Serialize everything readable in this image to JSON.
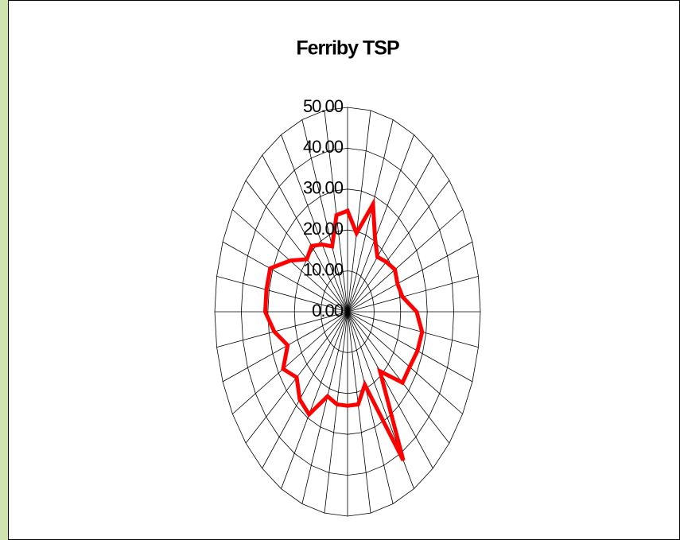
{
  "chart_data": {
    "type": "radar",
    "title": "Ferriby TSP",
    "values": [
      24.7,
      19.5,
      28,
      20.7,
      17.5,
      19,
      20.6,
      20,
      21,
      26,
      28.5,
      28,
      27,
      27,
      19,
      42,
      19,
      23,
      23,
      23,
      22,
      29,
      28,
      25,
      28,
      24,
      28,
      31,
      31,
      31,
      25,
      20,
      21,
      19,
      17,
      24
    ],
    "color": "#ff0000",
    "ylim": [
      0,
      50
    ],
    "yticks": [
      {
        "value": 0,
        "label": "0.00"
      },
      {
        "value": 10,
        "label": "10.00"
      },
      {
        "value": 20,
        "label": "20.00"
      },
      {
        "value": 30,
        "label": "30.00"
      },
      {
        "value": 40,
        "label": "40.00"
      },
      {
        "value": 50,
        "label": "50.00"
      }
    ],
    "grid": true
  }
}
